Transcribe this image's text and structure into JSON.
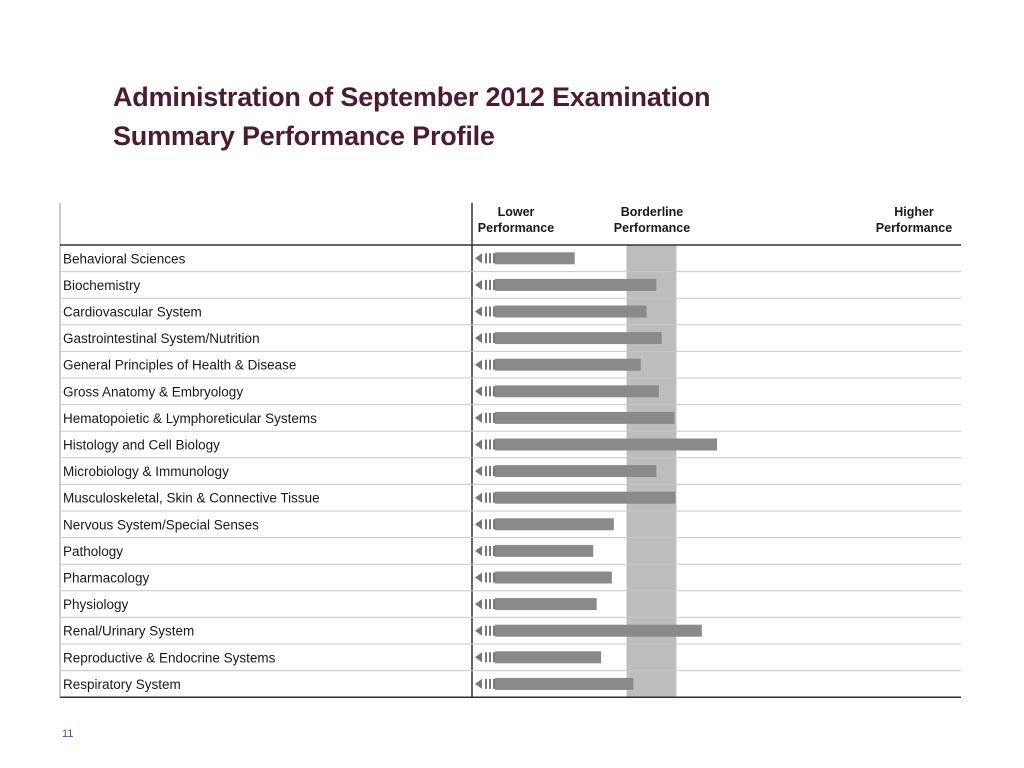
{
  "title": {
    "line1": "Administration of September 2012 Examination",
    "line2": "Summary Performance Profile"
  },
  "page_number": "11",
  "colors": {
    "title": "#4e1a30",
    "bar": "#8a8a8a",
    "borderline_band": "#bdbdbd",
    "page_number": "#2f5fa8"
  },
  "chart_data": {
    "type": "bar",
    "orientation": "horizontal",
    "scale_headers": [
      "Lower Performance",
      "Borderline Performance",
      "Higher Performance"
    ],
    "borderline_band": [
      0.316,
      0.418
    ],
    "xlim": [
      0,
      1
    ],
    "categories": [
      "Behavioral Sciences",
      "Biochemistry",
      "Cardiovascular System",
      "Gastrointestinal System/Nutrition",
      "General Principles of Health & Disease",
      "Gross Anatomy & Embryology",
      "Hematopoietic & Lymphoreticular Systems",
      "Histology and Cell Biology",
      "Microbiology & Immunology",
      "Musculoskeletal, Skin & Connective Tissue",
      "Nervous System/Special Senses",
      "Pathology",
      "Pharmacology",
      "Physiology",
      "Renal/Urinary System",
      "Reproductive & Endocrine Systems",
      "Respiratory System"
    ],
    "values": [
      0.21,
      0.377,
      0.357,
      0.388,
      0.345,
      0.382,
      0.414,
      0.501,
      0.377,
      0.416,
      0.29,
      0.248,
      0.286,
      0.255,
      0.47,
      0.264,
      0.33
    ]
  }
}
